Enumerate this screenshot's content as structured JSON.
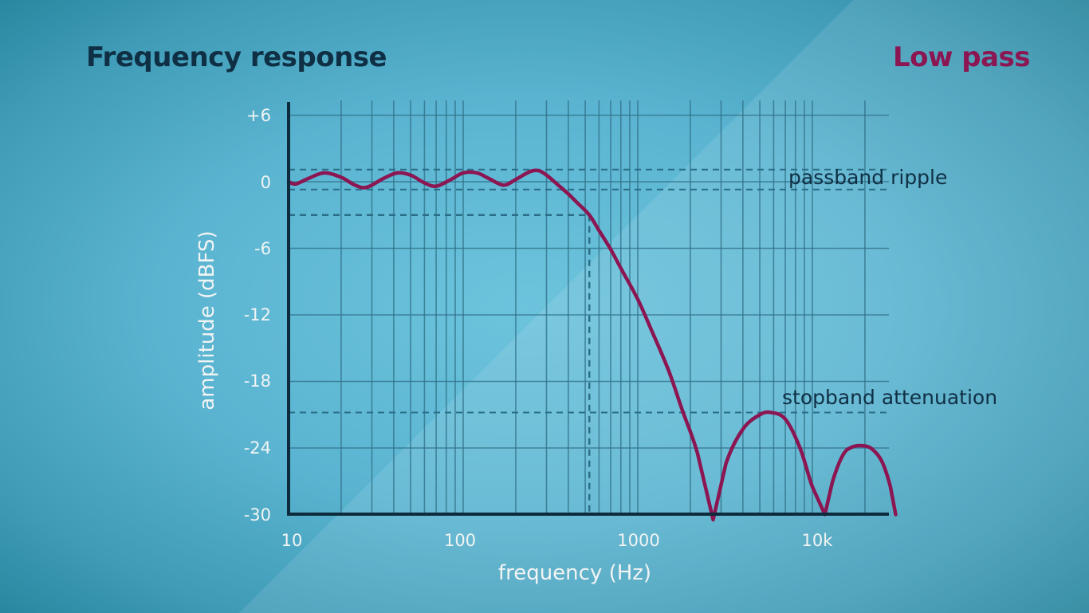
{
  "header": {
    "title": "Frequency response",
    "filter_type": "Low pass"
  },
  "colors": {
    "title": "#0f2f44",
    "accent": "#8b1652",
    "curve": "#8b1652",
    "grid": "#2f6f86",
    "axis": "#0d2b3c",
    "tick_labels": "#f2f4f4",
    "dashed": "#2a6d86"
  },
  "chart_data": {
    "type": "line",
    "title": "Frequency response",
    "subtitle": "Low pass",
    "xlabel": "frequency (Hz)",
    "ylabel": "amplitude (dBFS)",
    "x_scale": "log",
    "xlim": [
      10,
      30000
    ],
    "ylim": [
      -30,
      6
    ],
    "x_ticks": [
      10,
      100,
      1000,
      10000
    ],
    "x_tick_labels": [
      "10",
      "100",
      "1000",
      "10k"
    ],
    "y_ticks": [
      6,
      0,
      -6,
      -12,
      -18,
      -24,
      -30
    ],
    "y_tick_labels": [
      "+6",
      "0",
      "-6",
      "-12",
      "-18",
      "-24",
      "-30"
    ],
    "grid": true,
    "legend": null,
    "series": [
      {
        "name": "Low pass response",
        "x": [
          10,
          11,
          13,
          16,
          20,
          24,
          28,
          35,
          42,
          50,
          60,
          70,
          85,
          100,
          120,
          140,
          170,
          200,
          240,
          270,
          300,
          350,
          400,
          450,
          528,
          600,
          700,
          800,
          1000,
          1200,
          1500,
          1800,
          2200,
          2700,
          3200,
          4000,
          5000,
          5800,
          7000,
          8500,
          10000,
          11800,
          13000,
          15000,
          17000,
          19600,
          22000,
          25000,
          28000,
          30000
        ],
        "y": [
          0.0,
          -0.2,
          0.3,
          0.8,
          0.4,
          -0.3,
          -0.5,
          0.3,
          0.8,
          0.6,
          -0.1,
          -0.4,
          0.2,
          0.8,
          0.8,
          0.3,
          -0.3,
          0.2,
          0.9,
          1.0,
          0.6,
          -0.3,
          -1.1,
          -1.9,
          -3.0,
          -4.4,
          -6.1,
          -7.8,
          -10.6,
          -13.4,
          -17.0,
          -20.6,
          -24.5,
          -30.5,
          -25.4,
          -22.3,
          -21.0,
          -20.8,
          -21.4,
          -24.0,
          -27.5,
          -30.0,
          -27.1,
          -24.6,
          -23.9,
          -23.8,
          -24.1,
          -25.2,
          -27.5,
          -30.0
        ]
      }
    ],
    "reference_lines": [
      {
        "label": "passband ripple upper",
        "orientation": "horizontal",
        "y": 1.1,
        "style": "dashed"
      },
      {
        "label": "passband ripple lower",
        "orientation": "horizontal",
        "y": -0.7,
        "style": "dashed"
      },
      {
        "label": "cutoff -3 dB",
        "orientation": "horizontal",
        "y": -3.0,
        "x_end": 528,
        "style": "dashed"
      },
      {
        "label": "cutoff frequency",
        "orientation": "vertical",
        "x": 528,
        "style": "dashed"
      },
      {
        "label": "stopband attenuation",
        "orientation": "horizontal",
        "y": -20.8,
        "style": "dashed"
      }
    ],
    "annotations": [
      {
        "text": "passband ripple",
        "near_y": 0
      },
      {
        "text": "stopband attenuation",
        "near_y": -20.8
      }
    ]
  },
  "annotations": {
    "passband": "passband ripple",
    "stopband": "stopband attenuation"
  },
  "axes": {
    "x_title": "frequency (Hz)",
    "y_title": "amplitude (dBFS)",
    "y_labels": [
      "+6",
      "0",
      "-6",
      "-12",
      "-18",
      "-24",
      "-30"
    ],
    "x_labels": [
      "10",
      "100",
      "1000",
      "10k"
    ]
  }
}
